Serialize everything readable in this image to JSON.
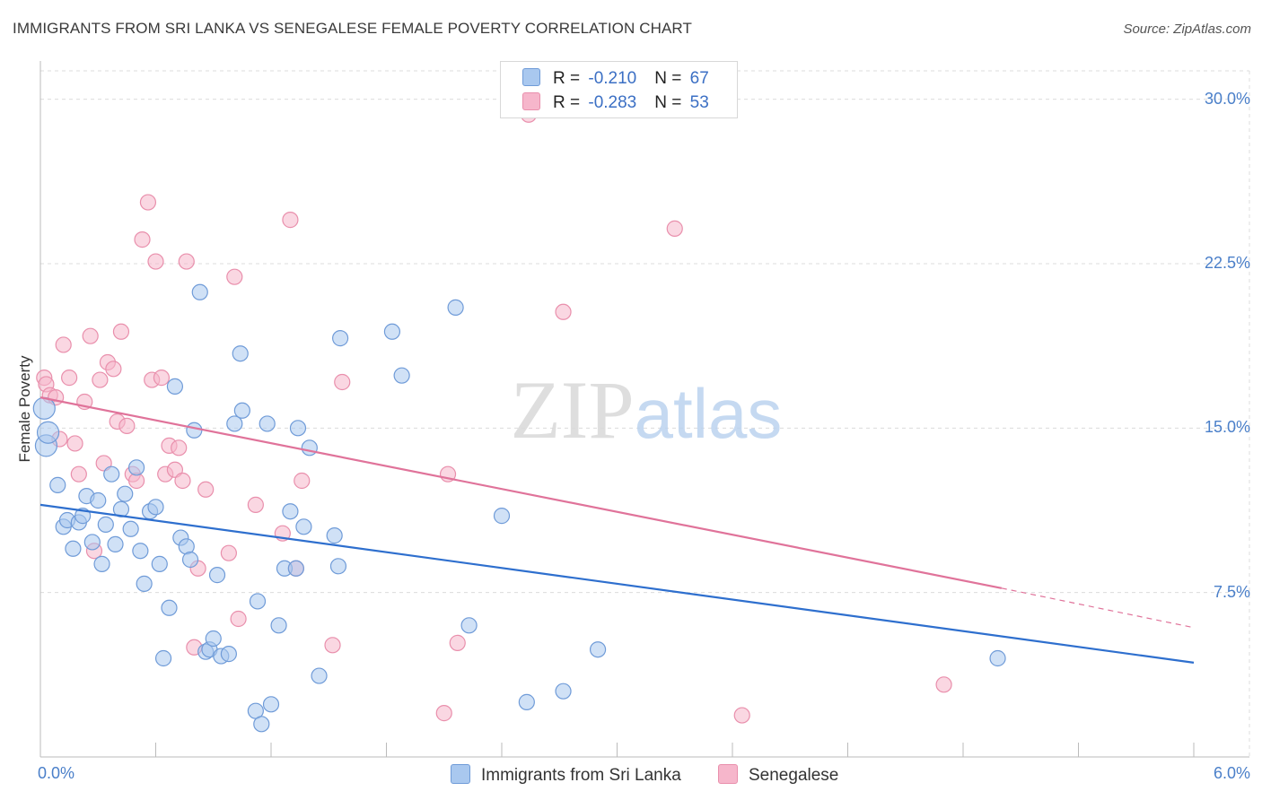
{
  "chart_data": {
    "type": "scatter",
    "title": "IMMIGRANTS FROM SRI LANKA VS SENEGALESE FEMALE POVERTY CORRELATION CHART",
    "source": "Source: ZipAtlas.com",
    "ylabel": "Female Poverty",
    "xlabel": "",
    "xlim": [
      0,
      6
    ],
    "ylim": [
      0,
      31.5
    ],
    "x_tick_labels": [
      "0.0%",
      "6.0%"
    ],
    "y_ticks": [
      7.5,
      15.0,
      22.5,
      30.0
    ],
    "y_tick_labels": [
      "7.5%",
      "15.0%",
      "22.5%",
      "30.0%"
    ],
    "grid": true,
    "watermark": "ZIPatlas",
    "legend": {
      "placement": "top-center",
      "rows": [
        {
          "r_label": "R = ",
          "r_value": "-0.210",
          "n_label": "N = ",
          "n_value": "67"
        },
        {
          "r_label": "R = ",
          "r_value": "-0.283",
          "n_label": "N = ",
          "n_value": "53"
        }
      ]
    },
    "series": [
      {
        "name": "Immigrants from Sri Lanka",
        "color": "#a9c8ef",
        "stroke": "#6f9bd8",
        "line_color": "#2e6fce",
        "trend": {
          "x0": 0.0,
          "y0": 11.5,
          "x1": 6.0,
          "y1": 4.3
        },
        "points": [
          [
            0.02,
            15.9
          ],
          [
            0.03,
            14.2
          ],
          [
            0.04,
            14.8
          ],
          [
            0.09,
            12.4
          ],
          [
            0.12,
            10.5
          ],
          [
            0.14,
            10.8
          ],
          [
            0.17,
            9.5
          ],
          [
            0.2,
            10.7
          ],
          [
            0.22,
            11.0
          ],
          [
            0.24,
            11.9
          ],
          [
            0.27,
            9.8
          ],
          [
            0.3,
            11.7
          ],
          [
            0.32,
            8.8
          ],
          [
            0.34,
            10.6
          ],
          [
            0.37,
            12.9
          ],
          [
            0.39,
            9.7
          ],
          [
            0.42,
            11.3
          ],
          [
            0.44,
            12.0
          ],
          [
            0.47,
            10.4
          ],
          [
            0.5,
            13.2
          ],
          [
            0.52,
            9.4
          ],
          [
            0.54,
            7.9
          ],
          [
            0.57,
            11.2
          ],
          [
            0.6,
            11.4
          ],
          [
            0.62,
            8.8
          ],
          [
            0.64,
            4.5
          ],
          [
            0.67,
            6.8
          ],
          [
            0.7,
            16.9
          ],
          [
            0.73,
            10.0
          ],
          [
            0.76,
            9.6
          ],
          [
            0.78,
            9.0
          ],
          [
            0.8,
            14.9
          ],
          [
            0.83,
            21.2
          ],
          [
            0.86,
            4.8
          ],
          [
            0.88,
            4.9
          ],
          [
            0.9,
            5.4
          ],
          [
            0.92,
            8.3
          ],
          [
            0.94,
            4.6
          ],
          [
            0.98,
            4.7
          ],
          [
            1.01,
            15.2
          ],
          [
            1.04,
            18.4
          ],
          [
            1.05,
            15.8
          ],
          [
            1.12,
            2.1
          ],
          [
            1.13,
            7.1
          ],
          [
            1.15,
            1.5
          ],
          [
            1.18,
            15.2
          ],
          [
            1.2,
            2.4
          ],
          [
            1.24,
            6.0
          ],
          [
            1.27,
            8.6
          ],
          [
            1.3,
            11.2
          ],
          [
            1.33,
            8.6
          ],
          [
            1.34,
            15.0
          ],
          [
            1.37,
            10.5
          ],
          [
            1.4,
            14.1
          ],
          [
            1.45,
            3.7
          ],
          [
            1.53,
            10.1
          ],
          [
            1.55,
            8.7
          ],
          [
            1.56,
            19.1
          ],
          [
            1.83,
            19.4
          ],
          [
            1.88,
            17.4
          ],
          [
            2.16,
            20.5
          ],
          [
            2.23,
            6.0
          ],
          [
            2.4,
            11.0
          ],
          [
            2.53,
            2.5
          ],
          [
            2.72,
            3.0
          ],
          [
            2.9,
            4.9
          ],
          [
            4.98,
            4.5
          ]
        ]
      },
      {
        "name": "Senegalese",
        "color": "#f6b6cb",
        "stroke": "#e98fac",
        "line_color": "#e0739a",
        "trend": {
          "x0": 0.0,
          "y0": 16.4,
          "x1": 5.0,
          "y1": 7.7,
          "dash_x1": 6.0,
          "dash_y1": 5.9
        },
        "points": [
          [
            0.02,
            17.3
          ],
          [
            0.03,
            17.0
          ],
          [
            0.05,
            16.5
          ],
          [
            0.08,
            16.4
          ],
          [
            0.1,
            14.5
          ],
          [
            0.12,
            18.8
          ],
          [
            0.15,
            17.3
          ],
          [
            0.18,
            14.3
          ],
          [
            0.2,
            12.9
          ],
          [
            0.23,
            16.2
          ],
          [
            0.26,
            19.2
          ],
          [
            0.28,
            9.4
          ],
          [
            0.31,
            17.2
          ],
          [
            0.33,
            13.4
          ],
          [
            0.35,
            18.0
          ],
          [
            0.38,
            17.7
          ],
          [
            0.4,
            15.3
          ],
          [
            0.42,
            19.4
          ],
          [
            0.45,
            15.1
          ],
          [
            0.48,
            12.9
          ],
          [
            0.5,
            12.6
          ],
          [
            0.53,
            23.6
          ],
          [
            0.56,
            25.3
          ],
          [
            0.58,
            17.2
          ],
          [
            0.6,
            22.6
          ],
          [
            0.63,
            17.3
          ],
          [
            0.65,
            12.9
          ],
          [
            0.67,
            14.2
          ],
          [
            0.7,
            13.1
          ],
          [
            0.72,
            14.1
          ],
          [
            0.74,
            12.6
          ],
          [
            0.76,
            22.6
          ],
          [
            0.8,
            5.0
          ],
          [
            0.82,
            8.6
          ],
          [
            0.86,
            12.2
          ],
          [
            0.98,
            9.3
          ],
          [
            1.01,
            21.9
          ],
          [
            1.03,
            6.3
          ],
          [
            1.12,
            11.5
          ],
          [
            1.26,
            10.2
          ],
          [
            1.3,
            24.5
          ],
          [
            1.33,
            8.6
          ],
          [
            1.36,
            12.6
          ],
          [
            1.52,
            5.1
          ],
          [
            1.57,
            17.1
          ],
          [
            2.1,
            2.0
          ],
          [
            2.12,
            12.9
          ],
          [
            2.17,
            5.2
          ],
          [
            2.54,
            29.3
          ],
          [
            2.72,
            20.3
          ],
          [
            3.3,
            24.1
          ],
          [
            3.65,
            1.9
          ],
          [
            4.7,
            3.3
          ]
        ]
      }
    ]
  }
}
